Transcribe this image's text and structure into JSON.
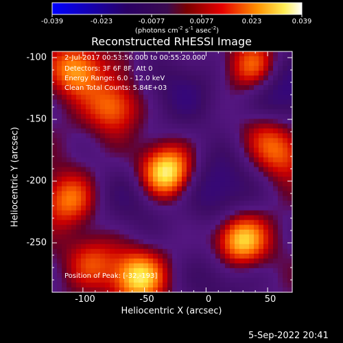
{
  "chart_data": {
    "type": "heatmap",
    "title": "Reconstructed RHESSI Image",
    "xlabel": "Heliocentric X (arcsec)",
    "ylabel": "Heliocentric Y (arcsec)",
    "xlim": [
      -125,
      70
    ],
    "ylim": [
      -290,
      -95
    ],
    "x_ticks": [
      "-100",
      "-50",
      "0",
      "50"
    ],
    "y_ticks": [
      "-100",
      "-150",
      "-200",
      "-250"
    ],
    "colorbar": {
      "min": -0.039,
      "max": 0.039,
      "tick_labels": [
        "-0.039",
        "-0.023",
        "-0.0077",
        "0.0077",
        "0.023",
        "0.039"
      ],
      "units": "(photons cm^-2 s^-1 asec^-2)"
    },
    "annotations": {
      "time": "2-Jul-2017 00:53:56.000 to 00:55:20.000",
      "detectors": "Detectors: 3F 6F 8F, Att 0",
      "energy": "Energy Range: 6.0 - 12.0 keV",
      "clean": "Clean    Total Counts: 5.84E+03",
      "peak": "Position of Peak: [-32,-193]"
    },
    "timestamp": "5-Sep-2022 20:41",
    "sources": [
      {
        "x": -32,
        "y": -193,
        "amp": 0.039
      },
      {
        "x": 28,
        "y": -248,
        "amp": 0.034
      },
      {
        "x": -55,
        "y": -278,
        "amp": 0.032
      },
      {
        "x": -105,
        "y": -110,
        "amp": 0.026
      },
      {
        "x": -75,
        "y": -140,
        "amp": 0.022
      },
      {
        "x": 38,
        "y": -108,
        "amp": 0.024
      },
      {
        "x": 62,
        "y": -178,
        "amp": 0.018
      },
      {
        "x": -112,
        "y": -215,
        "amp": 0.022
      },
      {
        "x": -92,
        "y": -265,
        "amp": 0.016
      },
      {
        "x": 48,
        "y": -160,
        "amp": 0.012
      }
    ],
    "negative_regions": [
      {
        "x": -20,
        "y": -128,
        "amp": -0.014
      },
      {
        "x": 10,
        "y": -205,
        "amp": -0.018
      },
      {
        "x": 62,
        "y": -128,
        "amp": -0.02
      },
      {
        "x": -60,
        "y": -215,
        "amp": -0.012
      },
      {
        "x": 10,
        "y": -280,
        "amp": -0.012
      }
    ]
  }
}
